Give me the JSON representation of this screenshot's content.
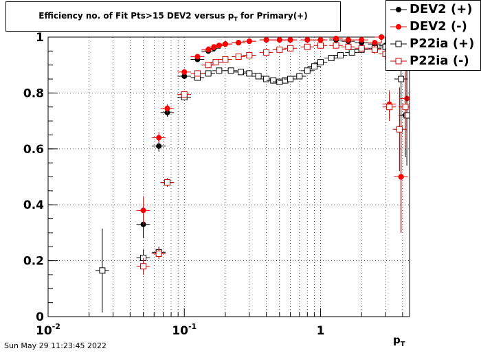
{
  "title_parts": {
    "main": "Efficiency no. of Fit Pts>15 DEV2 versus p",
    "sub": "T",
    "tail": " for Primary(+)"
  },
  "date_stamp": "Sun May 29 11:23:45 2022",
  "xlabel_parts": {
    "main": "p",
    "sub": "T"
  },
  "chart_data": {
    "type": "scatter",
    "x_scale": "log",
    "xlim": [
      0.01,
      4.5
    ],
    "ylim": [
      0,
      1.0
    ],
    "grid": true,
    "legend_placement": "top-right",
    "x_ticks": [
      {
        "value": 0.01,
        "base": "10",
        "exp": "-2"
      },
      {
        "value": 0.1,
        "base": "10",
        "exp": "-1"
      },
      {
        "value": 1,
        "base": "1",
        "exp": ""
      }
    ],
    "y_ticks": [
      "0",
      "0.2",
      "0.4",
      "0.6",
      "0.8",
      "1"
    ],
    "y_tick_values": [
      0,
      0.2,
      0.4,
      0.6,
      0.8,
      1.0
    ],
    "series": [
      {
        "name": "DEV2 (+)",
        "color": "#000000",
        "marker": "filled-circle",
        "x": [
          0.05,
          0.065,
          0.075,
          0.1,
          0.125,
          0.15,
          0.165,
          0.18,
          0.2,
          0.25,
          0.3,
          0.4,
          0.5,
          0.6,
          0.8,
          1.0,
          1.3,
          1.6,
          2.0,
          2.5,
          3.0,
          3.5,
          3.9,
          4.2
        ],
        "y": [
          0.33,
          0.61,
          0.73,
          0.86,
          0.92,
          0.95,
          0.96,
          0.97,
          0.975,
          0.98,
          0.985,
          0.99,
          0.99,
          0.99,
          0.99,
          0.99,
          0.99,
          0.985,
          0.98,
          0.975,
          0.97,
          0.96,
          0.5,
          0.72
        ],
        "err": [
          0.05,
          0.02,
          0.015,
          0.01,
          0.008,
          0.006,
          0.005,
          0.005,
          0.004,
          0.003,
          0.003,
          0.003,
          0.003,
          0.003,
          0.004,
          0.004,
          0.005,
          0.006,
          0.008,
          0.01,
          0.03,
          0.05,
          0.2,
          0.15
        ]
      },
      {
        "name": "DEV2 (-)",
        "color": "#ff0000",
        "marker": "filled-circle",
        "x": [
          0.05,
          0.065,
          0.075,
          0.1,
          0.125,
          0.15,
          0.165,
          0.18,
          0.2,
          0.25,
          0.3,
          0.4,
          0.5,
          0.6,
          0.8,
          1.0,
          1.3,
          1.6,
          2.0,
          2.5,
          2.8,
          3.2,
          3.9,
          4.3
        ],
        "y": [
          0.38,
          0.64,
          0.745,
          0.875,
          0.93,
          0.955,
          0.965,
          0.97,
          0.975,
          0.98,
          0.985,
          0.99,
          0.99,
          0.99,
          0.99,
          0.99,
          0.995,
          0.99,
          0.99,
          0.98,
          1.0,
          0.76,
          0.5,
          0.78
        ],
        "err": [
          0.05,
          0.02,
          0.015,
          0.01,
          0.008,
          0.006,
          0.005,
          0.005,
          0.004,
          0.003,
          0.003,
          0.003,
          0.003,
          0.003,
          0.004,
          0.004,
          0.005,
          0.006,
          0.008,
          0.01,
          0.02,
          0.05,
          0.2,
          0.12
        ]
      },
      {
        "name": "P22ia (+)",
        "color": "#000000",
        "marker": "open-square",
        "x": [
          0.025,
          0.05,
          0.065,
          0.075,
          0.1,
          0.125,
          0.15,
          0.18,
          0.22,
          0.26,
          0.3,
          0.35,
          0.4,
          0.45,
          0.5,
          0.55,
          0.6,
          0.7,
          0.8,
          0.9,
          1.0,
          1.2,
          1.4,
          1.7,
          2.0,
          2.5,
          3.0,
          3.4,
          3.9,
          4.3
        ],
        "y": [
          0.165,
          0.21,
          0.23,
          0.48,
          0.785,
          0.855,
          0.87,
          0.88,
          0.88,
          0.875,
          0.87,
          0.86,
          0.85,
          0.845,
          0.84,
          0.845,
          0.85,
          0.86,
          0.88,
          0.895,
          0.91,
          0.925,
          0.935,
          0.945,
          0.955,
          0.96,
          0.965,
          0.95,
          0.85,
          0.72
        ],
        "err": [
          0.15,
          0.03,
          0.02,
          0.015,
          0.01,
          0.008,
          0.006,
          0.005,
          0.005,
          0.004,
          0.004,
          0.004,
          0.004,
          0.004,
          0.004,
          0.004,
          0.004,
          0.004,
          0.005,
          0.005,
          0.005,
          0.006,
          0.006,
          0.008,
          0.01,
          0.015,
          0.03,
          0.05,
          0.15,
          0.18
        ]
      },
      {
        "name": "P22ia (-)",
        "color": "#cc0000",
        "marker": "open-square",
        "x": [
          0.05,
          0.065,
          0.075,
          0.1,
          0.125,
          0.15,
          0.17,
          0.2,
          0.25,
          0.3,
          0.4,
          0.5,
          0.6,
          0.8,
          1.0,
          1.3,
          1.6,
          2.0,
          2.5,
          3.0,
          3.2,
          3.8,
          4.2
        ],
        "y": [
          0.18,
          0.225,
          0.48,
          0.795,
          0.87,
          0.9,
          0.91,
          0.92,
          0.93,
          0.935,
          0.945,
          0.955,
          0.96,
          0.965,
          0.97,
          0.97,
          0.965,
          0.96,
          0.955,
          0.94,
          0.75,
          0.67,
          0.75
        ],
        "err": [
          0.03,
          0.02,
          0.015,
          0.01,
          0.008,
          0.006,
          0.005,
          0.005,
          0.004,
          0.004,
          0.004,
          0.004,
          0.004,
          0.005,
          0.005,
          0.006,
          0.008,
          0.01,
          0.015,
          0.02,
          0.05,
          0.15,
          0.15
        ]
      }
    ]
  }
}
